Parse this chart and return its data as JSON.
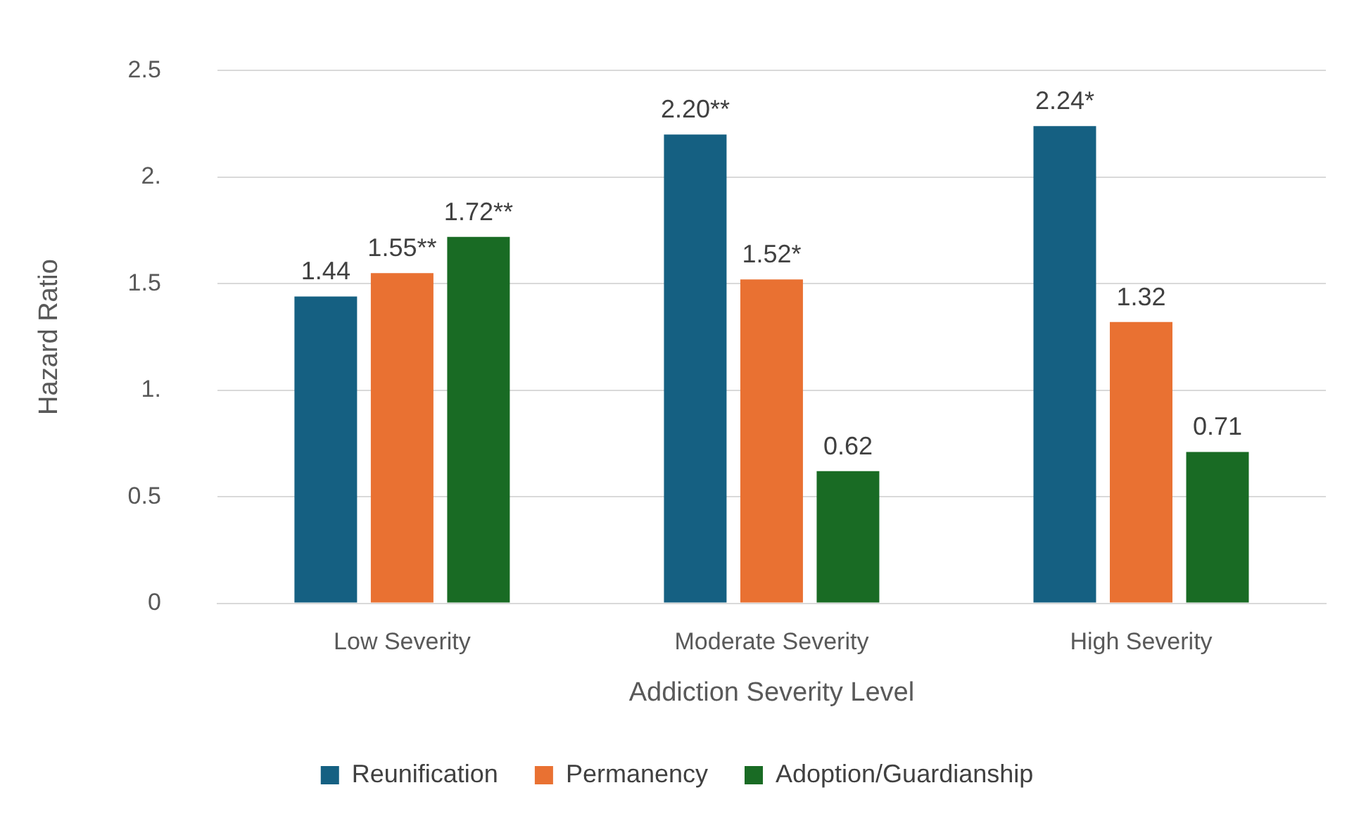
{
  "chart_data": {
    "type": "bar",
    "xlabel": "Addiction Severity Level",
    "ylabel": "Hazard Ratio",
    "categories": [
      "Low Severity",
      "Moderate Severity",
      "High Severity"
    ],
    "series": [
      {
        "name": "Reunification",
        "color": "#156082",
        "values": [
          1.44,
          2.2,
          2.24
        ],
        "value_labels": [
          "1.44",
          "2.20**",
          "2.24*"
        ]
      },
      {
        "name": "Permanency",
        "color": "#e97132",
        "values": [
          1.55,
          1.52,
          1.32
        ],
        "value_labels": [
          "1.55**",
          "1.52*",
          "1.32"
        ]
      },
      {
        "name": "Adoption/Guardianship",
        "color": "#196b24",
        "values": [
          1.72,
          0.62,
          0.71
        ],
        "value_labels": [
          "1.72**",
          "0.62",
          "0.71"
        ]
      }
    ],
    "ylim": [
      0,
      2.5
    ],
    "yticks": [
      0,
      0.5,
      {
        "value": 1,
        "label": "1."
      },
      1.5,
      {
        "value": 2,
        "label": "2."
      },
      2.5
    ],
    "grid": "y",
    "legend": "bottom"
  }
}
